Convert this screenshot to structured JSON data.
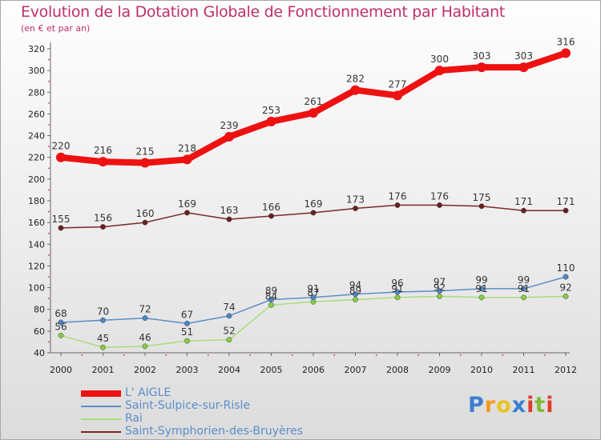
{
  "brand": {
    "name": "Proxiti",
    "letters": [
      {
        "ch": "P",
        "color": "#3a7fd0"
      },
      {
        "ch": "r",
        "color": "#f39a1d"
      },
      {
        "ch": "o",
        "color": "#e9c420"
      },
      {
        "ch": "x",
        "color": "#3a7fd0"
      },
      {
        "ch": "i",
        "color": "#e03b2e"
      },
      {
        "ch": "t",
        "color": "#82b93b"
      },
      {
        "ch": "i",
        "color": "#e03b2e"
      }
    ]
  },
  "chart_data": {
    "type": "line",
    "title": "Evolution de la Dotation Globale de Fonctionnement par Habitant",
    "subtitle": "(en € et par an)",
    "xlabel": "",
    "ylabel": "",
    "x": [
      2000,
      2001,
      2002,
      2003,
      2004,
      2005,
      2006,
      2007,
      2008,
      2009,
      2010,
      2011,
      2012
    ],
    "ylim": [
      40,
      320
    ],
    "yticks": [
      40,
      60,
      80,
      100,
      120,
      140,
      160,
      180,
      200,
      220,
      240,
      260,
      280,
      300,
      320
    ],
    "grid": false,
    "legend_position": "bottom-left",
    "series": [
      {
        "name": "L' AIGLE",
        "color": "#ee1111",
        "markerColor": "#ee1111",
        "width": 8,
        "markerRadius": 6,
        "values": [
          220,
          216,
          215,
          218,
          239,
          253,
          261,
          282,
          277,
          300,
          303,
          303,
          316
        ]
      },
      {
        "name": "Saint-Sulpice-sur-Risle",
        "color": "#5b8ec8",
        "markerColor": "#4a86c8",
        "width": 1.5,
        "markerRadius": 3.2,
        "values": [
          68,
          70,
          72,
          67,
          74,
          89,
          91,
          94,
          96,
          97,
          99,
          99,
          110
        ]
      },
      {
        "name": "Rai",
        "color": "#a8dc7c",
        "markerColor": "#88cc44",
        "width": 1.5,
        "markerRadius": 3.2,
        "values": [
          56,
          45,
          46,
          51,
          52,
          84,
          87,
          89,
          91,
          92,
          91,
          91,
          92
        ]
      },
      {
        "name": "Saint-Symphorien-des-Bruyères",
        "color": "#7a2828",
        "markerColor": "#6a1f1f",
        "width": 1.5,
        "markerRadius": 3.2,
        "values": [
          155,
          156,
          160,
          169,
          163,
          166,
          169,
          173,
          176,
          176,
          175,
          171,
          171
        ]
      }
    ]
  }
}
